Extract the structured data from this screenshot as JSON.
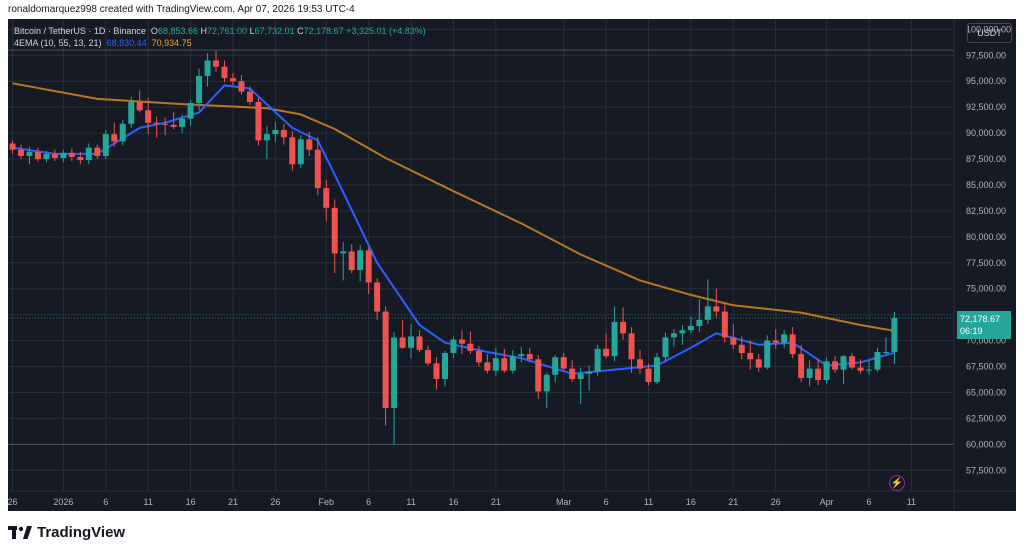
{
  "header": {
    "creator_line": "ronaldomarquez998 created with TradingView.com, Apr 07, 2026 19:53 UTC-4"
  },
  "legend": {
    "symbol": "Bitcoin / TetherUS · 1D · Binance",
    "open_label": "O",
    "open": "68,853.66",
    "high_label": "H",
    "high": "72,761.00",
    "low_label": "L",
    "low": "67,732.01",
    "close_label": "C",
    "close": "72,178.67",
    "change": "+3,325.01 (+4.83%)",
    "ema_label": "4EMA (10, 55, 13, 21)",
    "ema_fast": "68,830.44",
    "ema_slow": "70,934.75"
  },
  "currency_button": "USDT",
  "price_tag": {
    "price": "72,178.67",
    "countdown": "06:19"
  },
  "brand": {
    "name": "TradingView"
  },
  "colors": {
    "up": "#26a69a",
    "down": "#ef5350",
    "ema_fast": "#2962ff",
    "ema_slow": "#b7781f",
    "background": "#161a25",
    "grid": "#2a2e39"
  },
  "chart_data": {
    "type": "candlestick",
    "ylim": [
      55500,
      101000
    ],
    "y_ticks": [
      "100,000.00",
      "97,500.00",
      "95,000.00",
      "92,500.00",
      "90,000.00",
      "87,500.00",
      "85,000.00",
      "82,500.00",
      "80,000.00",
      "77,500.00",
      "75,000.00",
      "72,500.00",
      "70,000.00",
      "67,500.00",
      "65,000.00",
      "62,500.00",
      "60,000.00",
      "57,500.00"
    ],
    "x_ticks": [
      {
        "label": "26",
        "day": 0
      },
      {
        "label": "2026",
        "day": 6
      },
      {
        "label": "6",
        "day": 11
      },
      {
        "label": "11",
        "day": 16
      },
      {
        "label": "16",
        "day": 21
      },
      {
        "label": "21",
        "day": 26
      },
      {
        "label": "26",
        "day": 31
      },
      {
        "label": "Feb",
        "day": 37
      },
      {
        "label": "6",
        "day": 42
      },
      {
        "label": "11",
        "day": 47
      },
      {
        "label": "16",
        "day": 52
      },
      {
        "label": "21",
        "day": 57
      },
      {
        "label": "Mar",
        "day": 65
      },
      {
        "label": "6",
        "day": 70
      },
      {
        "label": "11",
        "day": 75
      },
      {
        "label": "16",
        "day": 80
      },
      {
        "label": "21",
        "day": 85
      },
      {
        "label": "26",
        "day": 90
      },
      {
        "label": "Apr",
        "day": 96
      },
      {
        "label": "6",
        "day": 101
      },
      {
        "label": "11",
        "day": 106
      }
    ],
    "horizontal_levels": [
      98000,
      60000
    ],
    "last_price": 72178.67,
    "candles": [
      [
        89000,
        89300,
        88000,
        88400
      ],
      [
        88400,
        88900,
        87500,
        87800
      ],
      [
        87800,
        88700,
        87000,
        88200
      ],
      [
        88200,
        88600,
        87200,
        87500
      ],
      [
        87500,
        88300,
        87200,
        88000
      ],
      [
        88000,
        88400,
        87300,
        87600
      ],
      [
        87600,
        88400,
        87200,
        88100
      ],
      [
        88100,
        88500,
        87300,
        87700
      ],
      [
        87700,
        88200,
        87000,
        87400
      ],
      [
        87400,
        89000,
        87000,
        88600
      ],
      [
        88600,
        88900,
        87500,
        87800
      ],
      [
        87800,
        90300,
        87500,
        89900
      ],
      [
        89900,
        91000,
        88700,
        89200
      ],
      [
        89200,
        91300,
        88800,
        90900
      ],
      [
        90900,
        93500,
        90500,
        93000
      ],
      [
        93000,
        94100,
        92000,
        92200
      ],
      [
        92200,
        93400,
        89900,
        91000
      ],
      [
        91000,
        91600,
        89600,
        90900
      ],
      [
        90900,
        91500,
        89800,
        90800
      ],
      [
        90800,
        92000,
        90400,
        90600
      ],
      [
        90600,
        91800,
        90000,
        91400
      ],
      [
        91400,
        93200,
        90700,
        92900
      ],
      [
        92900,
        96200,
        92200,
        95500
      ],
      [
        95500,
        97700,
        94500,
        97000
      ],
      [
        97000,
        97900,
        95900,
        96400
      ],
      [
        96400,
        97000,
        94900,
        95300
      ],
      [
        95300,
        95800,
        94600,
        95000
      ],
      [
        95000,
        95600,
        93700,
        94000
      ],
      [
        94000,
        94500,
        92700,
        93000
      ],
      [
        93000,
        93400,
        88800,
        89300
      ],
      [
        89300,
        90700,
        87500,
        89900
      ],
      [
        89900,
        91100,
        89100,
        90300
      ],
      [
        90300,
        90900,
        88900,
        89600
      ],
      [
        89600,
        90200,
        86400,
        87000
      ],
      [
        87000,
        89800,
        86600,
        89400
      ],
      [
        89400,
        90100,
        87800,
        88400
      ],
      [
        88400,
        89600,
        84000,
        84700
      ],
      [
        84700,
        85500,
        81500,
        82800
      ],
      [
        82800,
        83600,
        76500,
        78400
      ],
      [
        78400,
        79500,
        75800,
        78600
      ],
      [
        78600,
        79300,
        76500,
        76800
      ],
      [
        76800,
        79200,
        75700,
        78700
      ],
      [
        78700,
        79000,
        74500,
        75600
      ],
      [
        75600,
        76000,
        72000,
        72800
      ],
      [
        72800,
        73300,
        61800,
        63500
      ],
      [
        63500,
        70800,
        60000,
        70300
      ],
      [
        70300,
        72000,
        69200,
        69300
      ],
      [
        69300,
        71600,
        68300,
        70400
      ],
      [
        70400,
        71000,
        68900,
        69100
      ],
      [
        69100,
        69500,
        67600,
        67800
      ],
      [
        67800,
        68400,
        65300,
        66300
      ],
      [
        66300,
        69000,
        65600,
        68800
      ],
      [
        68800,
        70400,
        68300,
        70100
      ],
      [
        70100,
        71000,
        68700,
        69700
      ],
      [
        69700,
        70900,
        68700,
        69000
      ],
      [
        69000,
        69500,
        67500,
        67900
      ],
      [
        67900,
        68700,
        66800,
        67100
      ],
      [
        67100,
        69300,
        66600,
        68300
      ],
      [
        68300,
        69200,
        66900,
        67100
      ],
      [
        67100,
        69100,
        66800,
        68500
      ],
      [
        68500,
        69400,
        67900,
        68700
      ],
      [
        68700,
        69300,
        67900,
        68200
      ],
      [
        68200,
        68600,
        64400,
        65100
      ],
      [
        65100,
        66900,
        63500,
        66700
      ],
      [
        66700,
        68600,
        66000,
        68400
      ],
      [
        68400,
        68800,
        67100,
        67300
      ],
      [
        67300,
        68100,
        66000,
        66300
      ],
      [
        66300,
        67400,
        63900,
        66800
      ],
      [
        66800,
        67600,
        65200,
        67000
      ],
      [
        67000,
        69600,
        66600,
        69200
      ],
      [
        69200,
        70700,
        68300,
        68500
      ],
      [
        68500,
        73300,
        68000,
        71800
      ],
      [
        71800,
        73200,
        70100,
        70700
      ],
      [
        70700,
        71300,
        66900,
        68200
      ],
      [
        68200,
        69100,
        66800,
        67300
      ],
      [
        67300,
        67800,
        65700,
        66000
      ],
      [
        66000,
        68800,
        65800,
        68400
      ],
      [
        68400,
        70800,
        67900,
        70300
      ],
      [
        70300,
        71100,
        69400,
        70700
      ],
      [
        70700,
        71500,
        69600,
        71000
      ],
      [
        71000,
        72300,
        70700,
        71400
      ],
      [
        71400,
        74000,
        70800,
        72000
      ],
      [
        72000,
        75900,
        71600,
        73300
      ],
      [
        73300,
        75000,
        72200,
        72800
      ],
      [
        72800,
        73700,
        69800,
        70300
      ],
      [
        70300,
        71600,
        69200,
        69600
      ],
      [
        69600,
        70400,
        68200,
        68800
      ],
      [
        68800,
        70000,
        67200,
        68200
      ],
      [
        68200,
        68700,
        67000,
        67400
      ],
      [
        67400,
        70500,
        67200,
        70000
      ],
      [
        70000,
        71100,
        69200,
        69800
      ],
      [
        69800,
        71000,
        69300,
        70600
      ],
      [
        70600,
        71300,
        68300,
        68700
      ],
      [
        68700,
        69600,
        66000,
        66400
      ],
      [
        66400,
        68100,
        65600,
        67300
      ],
      [
        67300,
        68200,
        65700,
        66200
      ],
      [
        66200,
        68400,
        65900,
        68000
      ],
      [
        68000,
        68500,
        66900,
        67200
      ],
      [
        67200,
        68600,
        65800,
        68500
      ],
      [
        68500,
        68800,
        67200,
        67400
      ],
      [
        67400,
        68200,
        66800,
        67100
      ],
      [
        67100,
        68200,
        66700,
        67200
      ],
      [
        67200,
        69300,
        67000,
        68900
      ],
      [
        68900,
        70300,
        68600,
        68900
      ],
      [
        68900,
        72761,
        67732,
        72178.67
      ]
    ],
    "ema_fast": [
      [
        0,
        88600
      ],
      [
        5,
        88000
      ],
      [
        10,
        88000
      ],
      [
        15,
        90500
      ],
      [
        18,
        91000
      ],
      [
        22,
        92000
      ],
      [
        25,
        94600
      ],
      [
        28,
        94300
      ],
      [
        33,
        90500
      ],
      [
        36,
        89300
      ],
      [
        38,
        86000
      ],
      [
        43,
        77500
      ],
      [
        48,
        71500
      ],
      [
        51,
        69800
      ],
      [
        56,
        68900
      ],
      [
        60,
        68300
      ],
      [
        66,
        66800
      ],
      [
        71,
        67200
      ],
      [
        76,
        67600
      ],
      [
        80,
        69300
      ],
      [
        83,
        70700
      ],
      [
        88,
        69600
      ],
      [
        92,
        69800
      ],
      [
        96,
        67600
      ],
      [
        100,
        67900
      ],
      [
        104,
        68830
      ]
    ],
    "ema_slow": [
      [
        0,
        94800
      ],
      [
        10,
        93300
      ],
      [
        20,
        92800
      ],
      [
        25,
        92600
      ],
      [
        30,
        92400
      ],
      [
        34,
        91800
      ],
      [
        38,
        90400
      ],
      [
        44,
        87600
      ],
      [
        52,
        84400
      ],
      [
        60,
        81300
      ],
      [
        67,
        78300
      ],
      [
        74,
        75800
      ],
      [
        80,
        74400
      ],
      [
        85,
        73400
      ],
      [
        93,
        72700
      ],
      [
        100,
        71500
      ],
      [
        104,
        70935
      ]
    ]
  }
}
